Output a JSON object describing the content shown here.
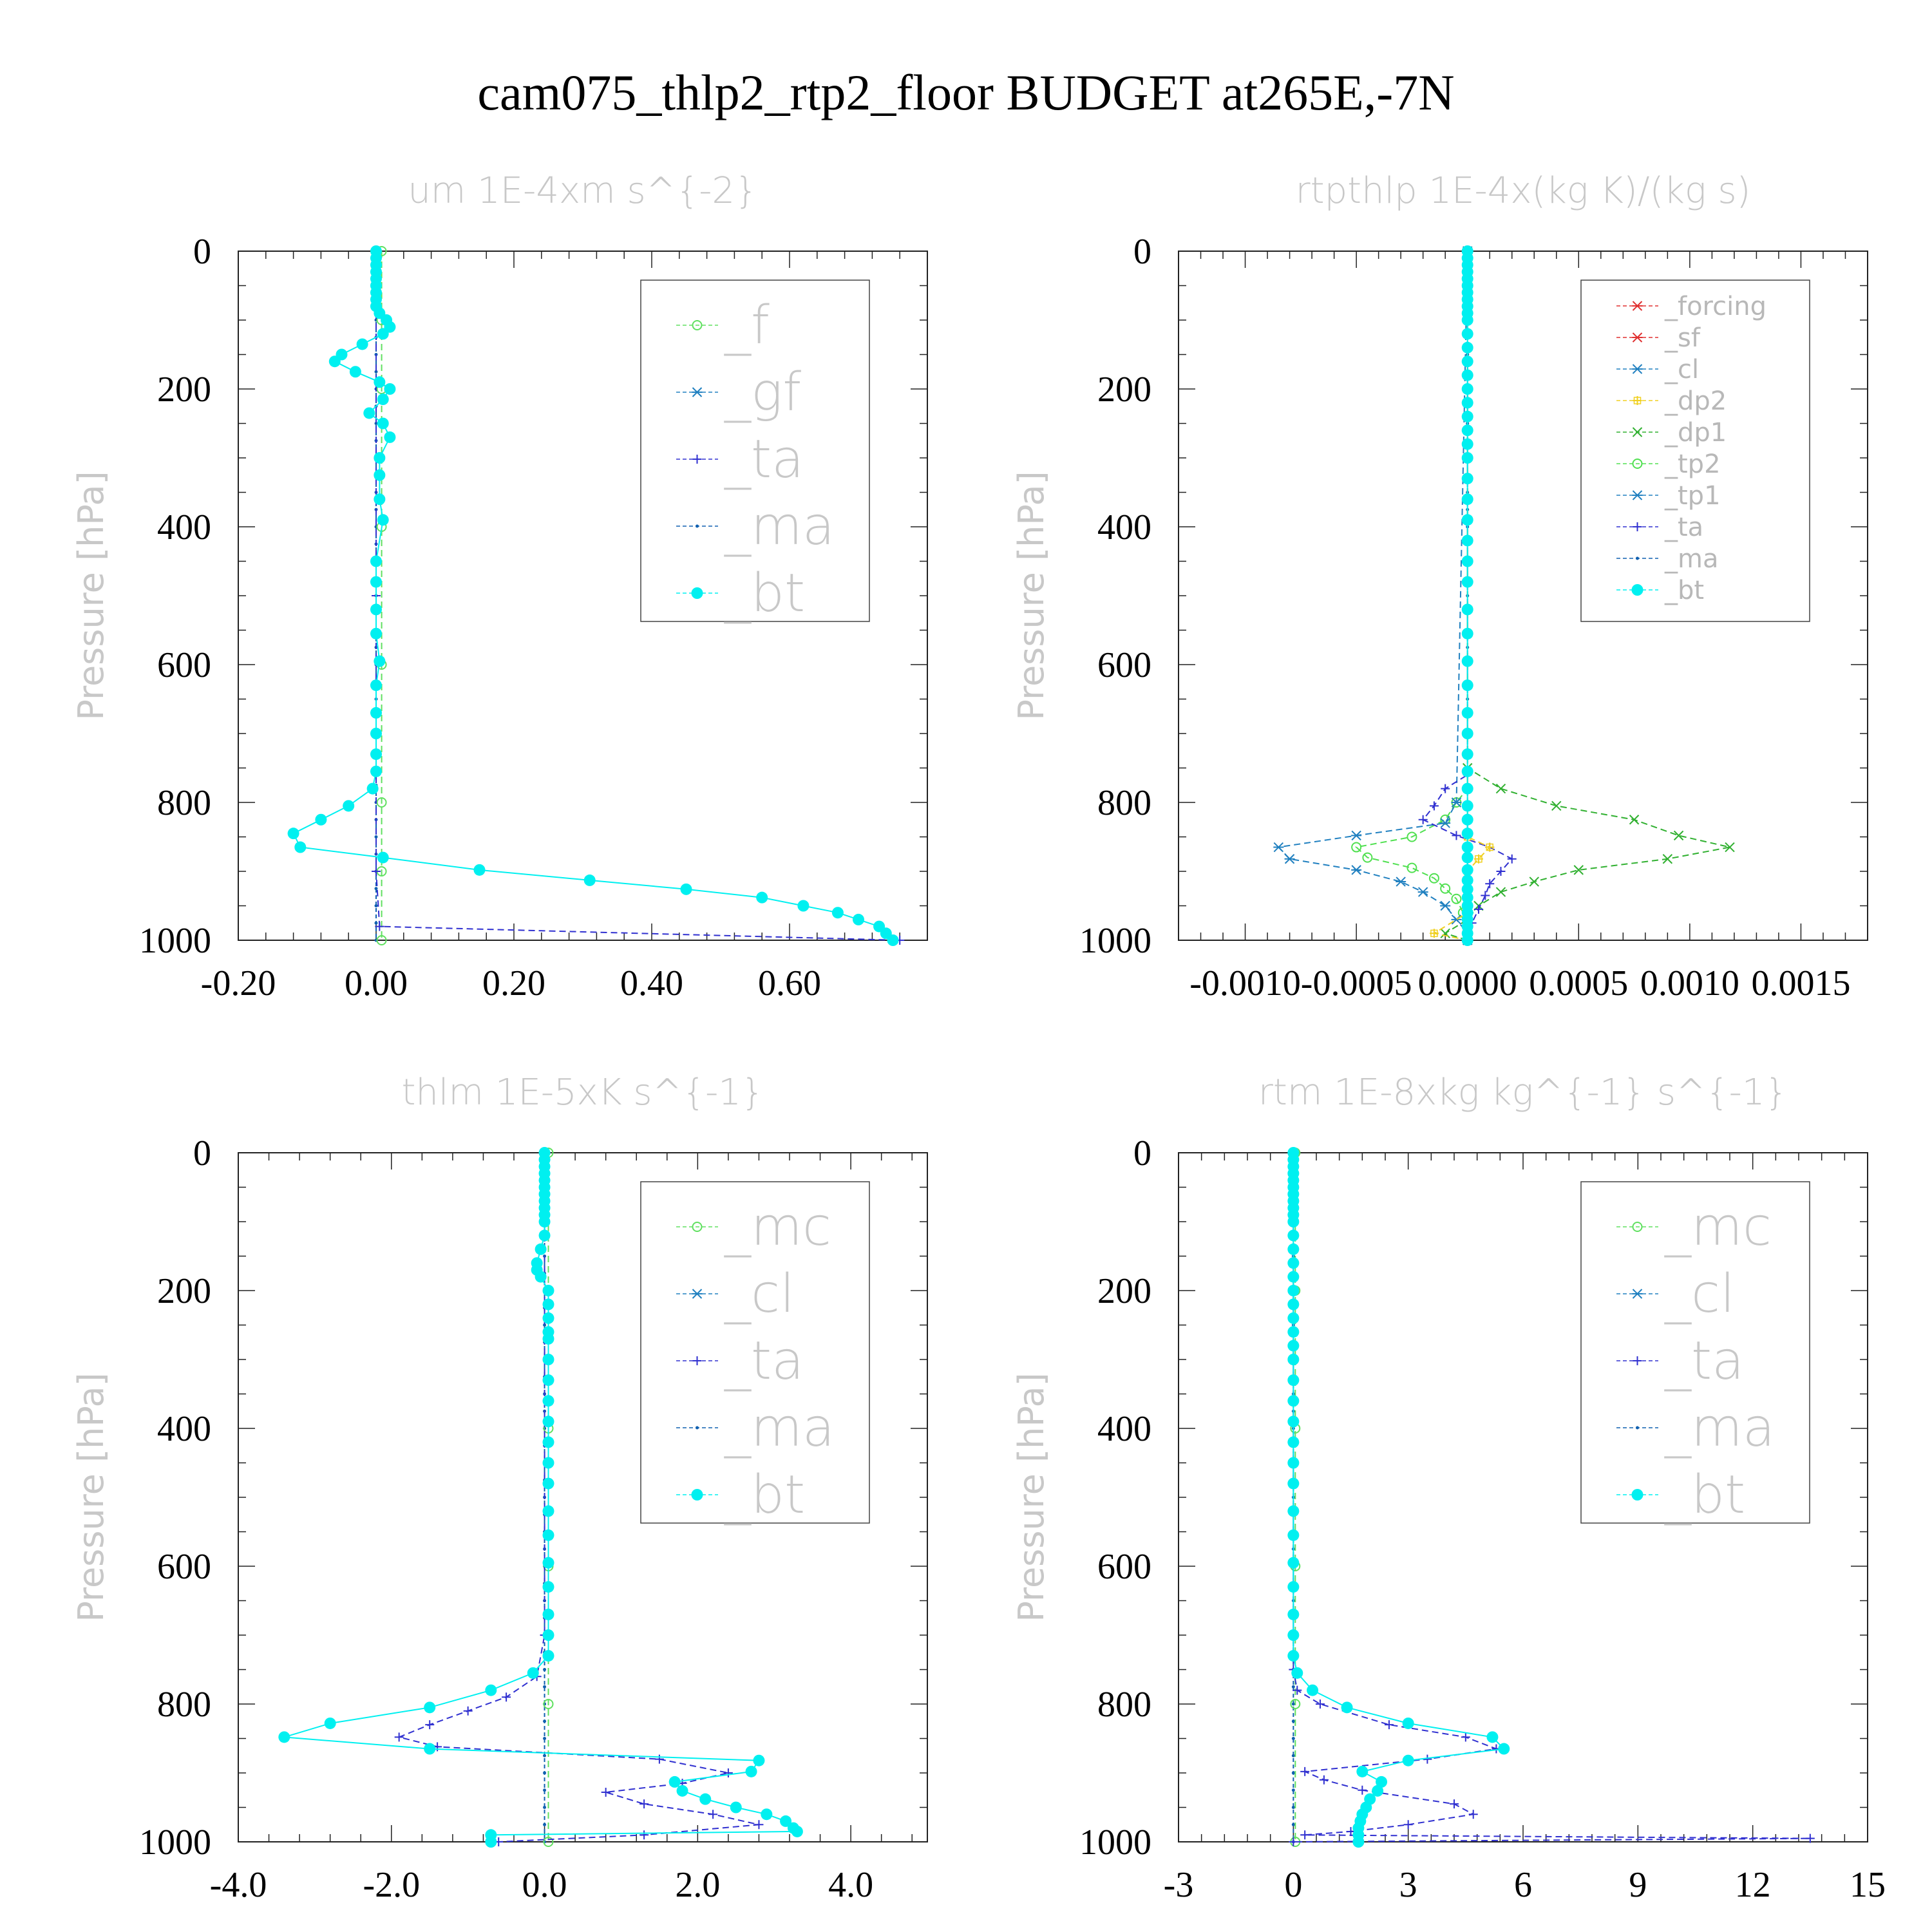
{
  "title": "cam075_thlp2_rtp2_floor  BUDGET at265E,-7N",
  "colors": {
    "bt": "#00f0f0",
    "ma": "#1060b0",
    "ta": "#3030d0",
    "gf": "#2080c0",
    "f": "#60e060",
    "mc": "#60e060",
    "cl": "#2080c0",
    "tp1": "#2080c0",
    "tp2": "#50e050",
    "dp1": "#30b030",
    "dp2": "#f0d020",
    "sf": "#e03030",
    "forcing": "#e03030"
  },
  "chart_data": [
    {
      "type": "line",
      "title": "um  1E-4xm s^{-2}",
      "ylabel": "Pressure [hPa]",
      "xlim": [
        -0.2,
        0.8
      ],
      "ylim": [
        1000,
        0
      ],
      "xticks": [
        "-0.20",
        "0.00",
        "0.20",
        "0.40",
        "0.60"
      ],
      "xtick_values": [
        -0.2,
        0,
        0.2,
        0.4,
        0.6
      ],
      "yticks": [
        "0",
        "200",
        "400",
        "600",
        "800",
        "1000"
      ],
      "legend_style": "big",
      "legend": [
        {
          "key": "f",
          "label": "_f"
        },
        {
          "key": "gf",
          "label": "_gf"
        },
        {
          "key": "ta",
          "label": "_ta"
        },
        {
          "key": "ma",
          "label": "_ma"
        },
        {
          "key": "bt",
          "label": "_bt"
        }
      ],
      "series": [
        {
          "key": "f",
          "p": [
            0,
            100,
            200,
            400,
            600,
            800,
            900,
            1000
          ],
          "v": [
            0.008,
            0.008,
            0.008,
            0.008,
            0.008,
            0.008,
            0.008,
            0.008
          ]
        },
        {
          "key": "ta",
          "p": [
            0,
            500,
            900,
            980,
            1000
          ],
          "v": [
            0,
            0,
            0,
            0.005,
            0.76
          ]
        },
        {
          "key": "bt",
          "p": [
            0,
            10,
            20,
            30,
            40,
            50,
            60,
            70,
            80,
            90,
            100,
            110,
            120,
            135,
            150,
            160,
            175,
            190,
            200,
            215,
            235,
            250,
            270,
            300,
            325,
            360,
            390,
            450,
            480,
            520,
            555,
            595,
            630,
            670,
            700,
            730,
            755,
            780,
            805,
            825,
            845,
            865,
            880,
            898,
            913,
            926,
            938,
            950,
            960,
            970,
            980,
            990,
            1000
          ],
          "v": [
            0,
            0,
            0,
            0,
            0,
            0,
            0,
            0,
            0,
            0.005,
            0.015,
            0.02,
            0.01,
            -0.02,
            -0.05,
            -0.06,
            -0.03,
            0.005,
            0.02,
            0.01,
            -0.01,
            0.01,
            0.02,
            0.005,
            0.005,
            0.005,
            0.01,
            0,
            0,
            0,
            0,
            0.005,
            0,
            0,
            0,
            0,
            0,
            -0.005,
            -0.04,
            -0.08,
            -0.12,
            -0.11,
            0.01,
            0.15,
            0.31,
            0.45,
            0.56,
            0.62,
            0.67,
            0.7,
            0.73,
            0.74,
            0.75
          ]
        }
      ]
    },
    {
      "type": "line",
      "title": "rtpthlp  1E-4x(kg K)/(kg s)",
      "ylabel": "Pressure [hPa]",
      "xlim": [
        -0.0013,
        0.0018
      ],
      "ylim": [
        1000,
        0
      ],
      "xticks": [
        "-0.0010",
        "-0.0005",
        "0.0000",
        "0.0005",
        "0.0010",
        "0.0015"
      ],
      "xtick_values": [
        -0.001,
        -0.0005,
        0,
        0.0005,
        0.001,
        0.0015
      ],
      "yticks": [
        "0",
        "200",
        "400",
        "600",
        "800",
        "1000"
      ],
      "legend_style": "small",
      "legend": [
        {
          "key": "forcing",
          "label": "_forcing"
        },
        {
          "key": "sf",
          "label": "_sf"
        },
        {
          "key": "cl",
          "label": "_cl"
        },
        {
          "key": "dp2",
          "label": "_dp2"
        },
        {
          "key": "dp1",
          "label": "_dp1"
        },
        {
          "key": "tp2",
          "label": "_tp2"
        },
        {
          "key": "tp1",
          "label": "_tp1"
        },
        {
          "key": "ta",
          "label": "_ta"
        },
        {
          "key": "ma",
          "label": "_ma"
        },
        {
          "key": "bt",
          "label": "_bt"
        }
      ],
      "series": [
        {
          "key": "dp1",
          "p": [
            0,
            750,
            780,
            805,
            825,
            848,
            865,
            882,
            898,
            915,
            930,
            950,
            970,
            990,
            1000
          ],
          "v": [
            0,
            0,
            0.00015,
            0.0004,
            0.00075,
            0.00095,
            0.00118,
            0.0009,
            0.0005,
            0.0003,
            0.00015,
            5e-05,
            0,
            -0.0001,
            0
          ]
        },
        {
          "key": "tp2",
          "p": [
            0,
            780,
            800,
            825,
            850,
            865,
            880,
            895,
            910,
            925,
            940,
            960,
            980,
            1000
          ],
          "v": [
            0,
            0,
            -5e-05,
            -0.0001,
            -0.00025,
            -0.0005,
            -0.00045,
            -0.00025,
            -0.00015,
            -0.0001,
            -5e-05,
            -2e-05,
            0,
            0
          ]
        },
        {
          "key": "tp1",
          "p": [
            0,
            800,
            830,
            848,
            865,
            882,
            898,
            915,
            930,
            950,
            970,
            990,
            1000
          ],
          "v": [
            0,
            -5e-05,
            -0.0001,
            -0.0005,
            -0.00085,
            -0.0008,
            -0.0005,
            -0.0003,
            -0.0002,
            -0.0001,
            -5e-05,
            0,
            0
          ]
        },
        {
          "key": "ta",
          "p": [
            0,
            760,
            780,
            805,
            825,
            848,
            865,
            882,
            900,
            918,
            935,
            955,
            975,
            990,
            1000
          ],
          "v": [
            0,
            0,
            -0.0001,
            -0.00015,
            -0.0002,
            -5e-05,
            0.0001,
            0.0002,
            0.00015,
            0.0001,
            8e-05,
            5e-05,
            2e-05,
            0,
            0
          ]
        },
        {
          "key": "dp2",
          "p": [
            0,
            850,
            865,
            882,
            900,
            960,
            990,
            1000
          ],
          "v": [
            0,
            0,
            0.0001,
            5e-05,
            0,
            0,
            -0.00015,
            0
          ]
        },
        {
          "key": "bt",
          "p": [
            0,
            10,
            20,
            30,
            40,
            50,
            60,
            70,
            80,
            90,
            100,
            120,
            140,
            160,
            180,
            200,
            220,
            240,
            260,
            280,
            300,
            330,
            360,
            390,
            420,
            450,
            480,
            520,
            555,
            595,
            630,
            670,
            700,
            730,
            755,
            780,
            805,
            825,
            845,
            865,
            880,
            898,
            913,
            926,
            938,
            950,
            960,
            970,
            980,
            990,
            1000
          ],
          "v": [
            0,
            0,
            0,
            0,
            0,
            0,
            0,
            0,
            0,
            0,
            0,
            0,
            0,
            0,
            0,
            0,
            0,
            0,
            0,
            0,
            0,
            0,
            0,
            0,
            0,
            0,
            0,
            0,
            0,
            0,
            0,
            0,
            0,
            0,
            0,
            0,
            0,
            0,
            0,
            0,
            0,
            0,
            0,
            0,
            0,
            0,
            0,
            0,
            0,
            0,
            0
          ]
        }
      ]
    },
    {
      "type": "line",
      "title": "thlm  1E-5xK s^{-1}",
      "ylabel": "Pressure [hPa]",
      "xlim": [
        -4.0,
        5.0
      ],
      "ylim": [
        1000,
        0
      ],
      "xticks": [
        "-4.0",
        "-2.0",
        "0.0",
        "2.0",
        "4.0"
      ],
      "xtick_values": [
        -4,
        -2,
        0,
        2,
        4
      ],
      "yticks": [
        "0",
        "200",
        "400",
        "600",
        "800",
        "1000"
      ],
      "legend_style": "big",
      "legend": [
        {
          "key": "mc",
          "label": "_mc"
        },
        {
          "key": "cl",
          "label": "_cl"
        },
        {
          "key": "ta",
          "label": "_ta"
        },
        {
          "key": "ma",
          "label": "_ma"
        },
        {
          "key": "bt",
          "label": "_bt"
        }
      ],
      "series": [
        {
          "key": "mc",
          "p": [
            0,
            200,
            400,
            600,
            800,
            1000
          ],
          "v": [
            0.05,
            0.05,
            0.05,
            0.05,
            0.05,
            0.05
          ]
        },
        {
          "key": "ta",
          "p": [
            0,
            700,
            760,
            790,
            810,
            830,
            848,
            862,
            880,
            900,
            915,
            928,
            945,
            960,
            975,
            990,
            1000
          ],
          "v": [
            0,
            0,
            -0.1,
            -0.5,
            -1.0,
            -1.5,
            -1.9,
            -1.4,
            1.5,
            2.4,
            1.8,
            0.8,
            1.3,
            2.2,
            2.8,
            1.3,
            -0.6
          ]
        },
        {
          "key": "bt",
          "p": [
            0,
            10,
            20,
            30,
            40,
            50,
            60,
            70,
            80,
            90,
            100,
            120,
            140,
            160,
            170,
            180,
            200,
            220,
            240,
            260,
            270,
            300,
            330,
            360,
            390,
            420,
            450,
            480,
            520,
            555,
            595,
            630,
            670,
            700,
            730,
            755,
            780,
            805,
            828,
            848,
            865,
            882,
            898,
            913,
            926,
            938,
            950,
            960,
            970,
            980,
            985,
            990,
            1000
          ],
          "v": [
            0,
            0,
            0,
            0,
            0,
            0,
            0,
            0,
            0,
            0,
            0,
            0,
            -0.05,
            -0.1,
            -0.1,
            -0.05,
            0.05,
            0.05,
            0.05,
            0.05,
            0.05,
            0.05,
            0.05,
            0.05,
            0.05,
            0.05,
            0.05,
            0.05,
            0.05,
            0.05,
            0.05,
            0.05,
            0.05,
            0.05,
            0.05,
            -0.15,
            -0.7,
            -1.5,
            -2.8,
            -3.4,
            -1.5,
            2.8,
            2.7,
            1.7,
            1.8,
            2.1,
            2.5,
            2.9,
            3.15,
            3.25,
            3.3,
            -0.7,
            -0.7
          ]
        }
      ]
    },
    {
      "type": "line",
      "title": "rtm  1E-8xkg kg^{-1} s^{-1}",
      "ylabel": "Pressure [hPa]",
      "xlim": [
        -3,
        15
      ],
      "ylim": [
        1000,
        0
      ],
      "xticks": [
        "-3",
        "0",
        "3",
        "6",
        "9",
        "12",
        "15"
      ],
      "xtick_values": [
        -3,
        0,
        3,
        6,
        9,
        12,
        15
      ],
      "yticks": [
        "0",
        "200",
        "400",
        "600",
        "800",
        "1000"
      ],
      "legend_style": "big",
      "legend": [
        {
          "key": "mc",
          "label": "_mc"
        },
        {
          "key": "cl",
          "label": "_cl"
        },
        {
          "key": "ta",
          "label": "_ta"
        },
        {
          "key": "ma",
          "label": "_ma"
        },
        {
          "key": "bt",
          "label": "_bt"
        }
      ],
      "series": [
        {
          "key": "mc",
          "p": [
            0,
            200,
            400,
            600,
            800,
            1000
          ],
          "v": [
            0.05,
            0.05,
            0.05,
            0.05,
            0.05,
            0.05
          ]
        },
        {
          "key": "ta",
          "p": [
            0,
            750,
            780,
            800,
            830,
            848,
            865,
            880,
            898,
            910,
            925,
            945,
            960,
            975,
            985,
            990,
            995,
            1000
          ],
          "v": [
            0,
            0,
            0.1,
            0.7,
            2.5,
            4.5,
            5.3,
            3.5,
            0.3,
            0.8,
            1.8,
            4.2,
            4.7,
            3.0,
            1.5,
            0.3,
            13.5,
            0
          ]
        },
        {
          "key": "bt",
          "p": [
            0,
            10,
            20,
            30,
            40,
            50,
            60,
            70,
            80,
            90,
            100,
            120,
            140,
            160,
            180,
            200,
            220,
            240,
            260,
            280,
            300,
            330,
            360,
            390,
            420,
            450,
            480,
            520,
            555,
            595,
            630,
            670,
            700,
            730,
            755,
            780,
            805,
            828,
            848,
            865,
            882,
            898,
            913,
            926,
            938,
            950,
            960,
            970,
            980,
            990,
            1000
          ],
          "v": [
            0,
            0,
            0,
            0,
            0,
            0,
            0,
            0,
            0,
            0,
            0,
            0,
            0,
            0,
            0,
            0,
            0,
            0,
            0,
            0,
            0,
            0,
            0,
            0,
            0,
            0,
            0,
            0,
            0,
            0,
            0,
            0,
            0,
            0,
            0.1,
            0.5,
            1.4,
            3.0,
            5.2,
            5.5,
            3.0,
            1.8,
            2.3,
            2.2,
            2.0,
            1.9,
            1.8,
            1.75,
            1.7,
            1.7,
            1.7
          ]
        }
      ]
    }
  ]
}
